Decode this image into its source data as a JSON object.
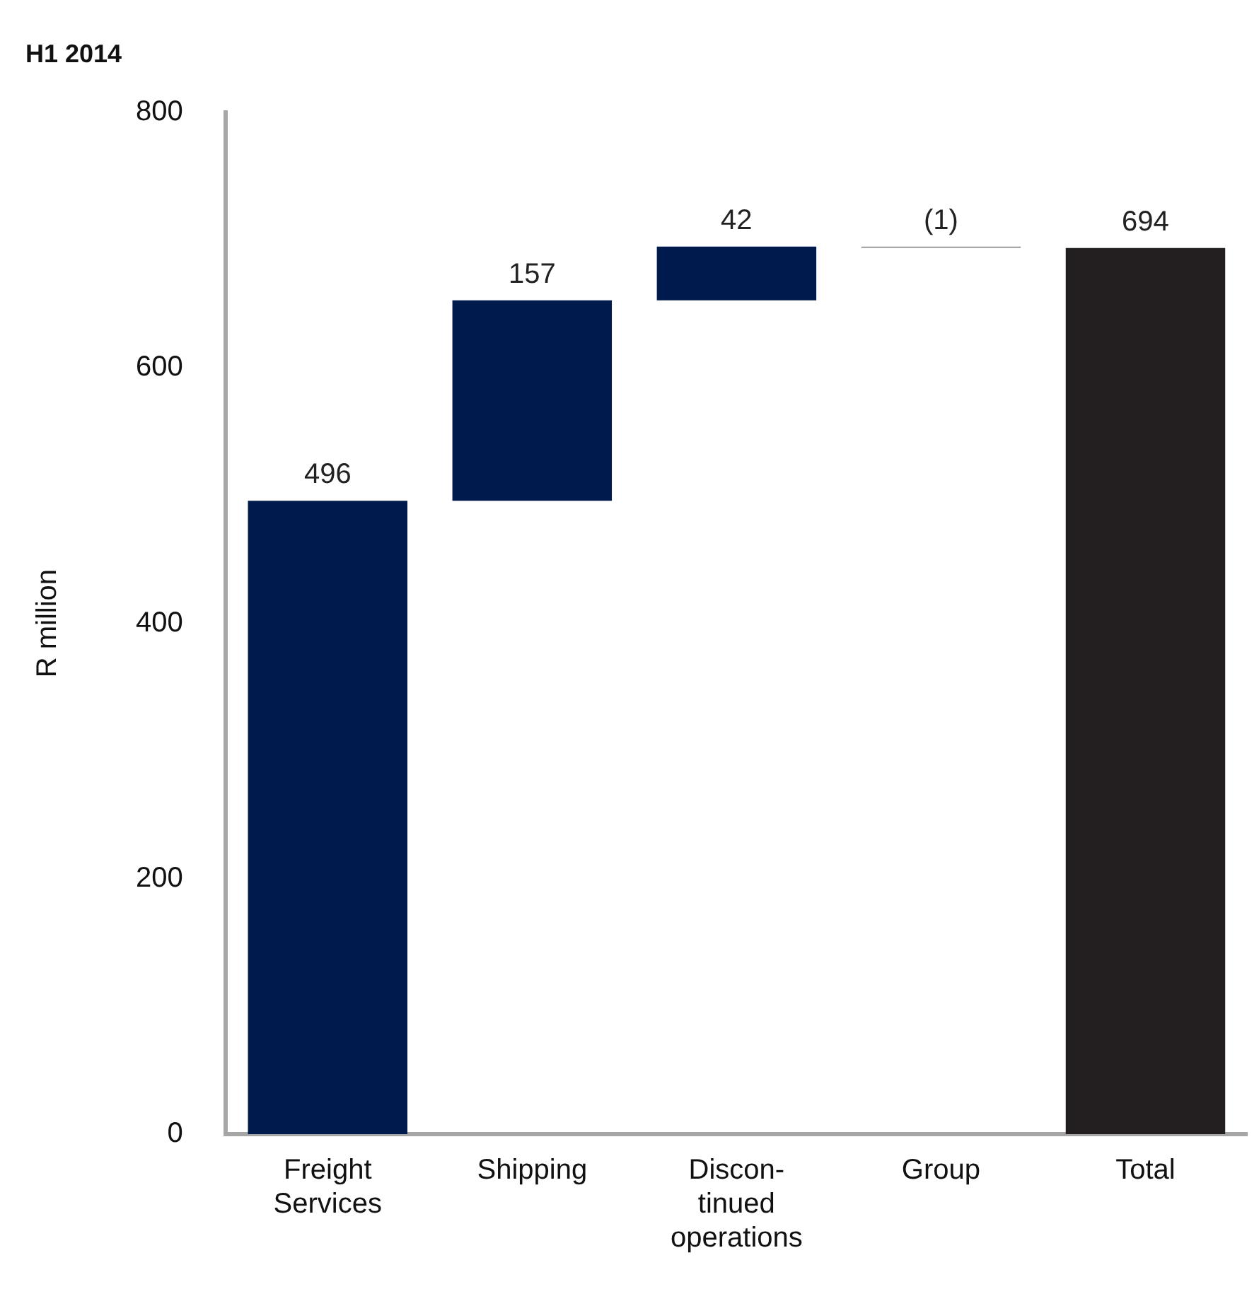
{
  "chart_data": {
    "type": "bar",
    "title": "H1 2014",
    "ylabel": "R million",
    "categories": [
      "Freight Services",
      "Shipping",
      "Discon-tinued operations",
      "Group",
      "Total"
    ],
    "values": [
      496,
      157,
      42,
      -1,
      694
    ],
    "base": [
      0,
      496,
      653,
      695,
      0
    ],
    "colors": [
      "#001a4d",
      "#001a4d",
      "#001a4d",
      "#9a9a9a",
      "#231f20"
    ],
    "value_labels": [
      "496",
      "157",
      "42",
      "(1)",
      "694"
    ],
    "ylim": [
      0,
      800
    ],
    "yticks": [
      0,
      200,
      400,
      600,
      800
    ],
    "grid": false,
    "legend": false
  }
}
